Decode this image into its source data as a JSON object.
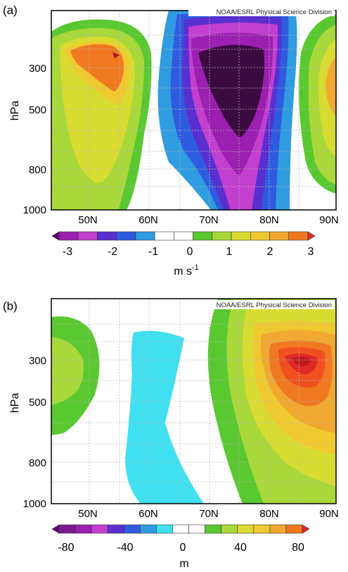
{
  "chart_data": [
    {
      "panel_label": "(a)",
      "type": "heatmap",
      "credit": "NOAA/ESRL Physical Science Division",
      "ylabel": "hPa",
      "xlim": [
        "45N",
        "90N"
      ],
      "ylim": [
        1000,
        100
      ],
      "x_ticks": [
        "50N",
        "60N",
        "70N",
        "80N",
        "90N"
      ],
      "y_ticks": [
        "300",
        "500",
        "800",
        "1000"
      ],
      "grid": true,
      "colorbar": {
        "ticks": [
          "-3",
          "-2",
          "-1",
          "0",
          "1",
          "2",
          "3"
        ],
        "unit": "m s",
        "unit_superscript": "-1",
        "colors": [
          "#5a0a6e",
          "#9b1fb0",
          "#c23fd0",
          "#5a2fd0",
          "#2f5be0",
          "#2f9be0",
          "#ffffff",
          "#ffffff",
          "#5ac830",
          "#a8d83a",
          "#d8dc30",
          "#f0c830",
          "#f0a830",
          "#f07820",
          "#e02828"
        ]
      },
      "features": [
        {
          "name": "westerly anomaly maximum",
          "center_lat": 54,
          "center_hpa": 280,
          "peak": 3
        },
        {
          "name": "easterly anomaly minimum",
          "center_lat": 74,
          "center_hpa": 340,
          "peak": -3
        },
        {
          "name": "westerly anomaly (edge)",
          "center_lat": 90,
          "center_hpa": 320,
          "peak": 2
        }
      ]
    },
    {
      "panel_label": "(b)",
      "type": "heatmap",
      "credit": "NOAA/ESRL Physical Science Division",
      "ylabel": "hPa",
      "xlim": [
        "45N",
        "90N"
      ],
      "ylim": [
        1000,
        100
      ],
      "x_ticks": [
        "50N",
        "60N",
        "70N",
        "80N",
        "90N"
      ],
      "y_ticks": [
        "300",
        "500",
        "800",
        "1000"
      ],
      "grid": true,
      "colorbar": {
        "ticks": [
          "-80",
          "-40",
          "0",
          "40",
          "80"
        ],
        "unit": "m",
        "colors": [
          "#5a0a6e",
          "#7a1890",
          "#9b1fb0",
          "#c23fd0",
          "#5a2fd0",
          "#2f5be0",
          "#2f9be0",
          "#40e0f0",
          "#ffffff",
          "#ffffff",
          "#5ac830",
          "#a8d83a",
          "#d8dc30",
          "#f0c830",
          "#f0a830",
          "#f07820",
          "#e02828"
        ]
      },
      "features": [
        {
          "name": "geopotential height maximum",
          "center_lat": 84,
          "center_hpa": 310,
          "peak": 80
        },
        {
          "name": "weak negative band",
          "center_lat": 61,
          "center_hpa": 500,
          "peak": -10
        },
        {
          "name": "weak positive (west edge)",
          "center_lat": 46,
          "center_hpa": 350,
          "peak": 10
        }
      ]
    }
  ]
}
